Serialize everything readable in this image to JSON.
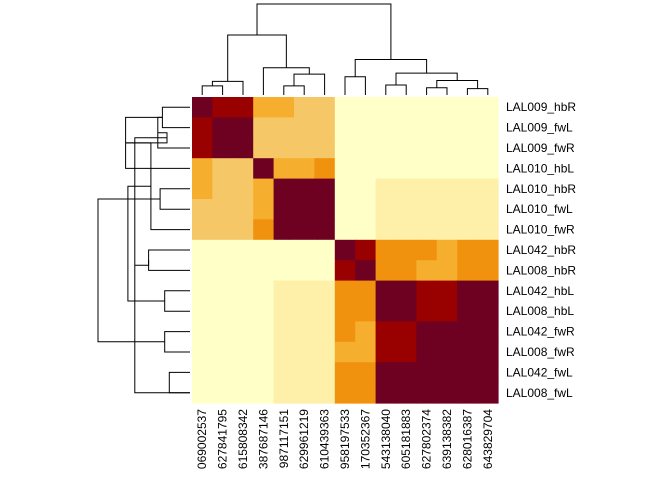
{
  "chart_data": {
    "type": "heatmap",
    "title": "",
    "xlabel": "",
    "ylabel": "",
    "rows": [
      "LAL009_hbR",
      "LAL009_fwL",
      "LAL009_fwR",
      "LAL010_hbL",
      "LAL010_hbR",
      "LAL010_fwL",
      "LAL010_fwR",
      "LAL042_hbR",
      "LAL008_hbR",
      "LAL042_hbL",
      "LAL008_hbL",
      "LAL042_fwR",
      "LAL008_fwR",
      "LAL042_fwL",
      "LAL008_fwL"
    ],
    "columns": [
      "069002537",
      "627841795",
      "615808342",
      "387687146",
      "987117151",
      "629961219",
      "610439363",
      "958197533",
      "170352367",
      "543138040",
      "605181883",
      "627802374",
      "639138382",
      "628016387",
      "643829704"
    ],
    "values": [
      [
        8,
        7,
        7,
        4,
        4,
        3,
        3,
        0,
        0,
        0,
        0,
        0,
        0,
        0,
        0
      ],
      [
        7,
        8,
        8,
        3,
        3,
        3,
        3,
        0,
        0,
        0,
        0,
        0,
        0,
        0,
        0
      ],
      [
        7,
        8,
        8,
        3,
        3,
        3,
        3,
        0,
        0,
        0,
        0,
        0,
        0,
        0,
        0
      ],
      [
        4,
        3,
        3,
        8,
        4,
        4,
        5,
        0,
        0,
        0,
        0,
        0,
        0,
        0,
        0
      ],
      [
        4,
        3,
        3,
        4,
        8,
        8,
        8,
        0,
        0,
        1,
        1,
        1,
        1,
        1,
        1
      ],
      [
        3,
        3,
        3,
        4,
        8,
        8,
        8,
        0,
        0,
        1,
        1,
        1,
        1,
        1,
        1
      ],
      [
        3,
        3,
        3,
        5,
        8,
        8,
        8,
        0,
        0,
        1,
        1,
        1,
        1,
        1,
        1
      ],
      [
        0,
        0,
        0,
        0,
        0,
        0,
        0,
        8,
        7,
        5,
        5,
        5,
        4,
        5,
        5
      ],
      [
        0,
        0,
        0,
        0,
        0,
        0,
        0,
        7,
        8,
        5,
        5,
        4,
        4,
        5,
        5
      ],
      [
        0,
        0,
        0,
        0,
        1,
        1,
        1,
        5,
        5,
        8,
        8,
        7,
        7,
        8,
        8
      ],
      [
        0,
        0,
        0,
        0,
        1,
        1,
        1,
        5,
        5,
        8,
        8,
        7,
        7,
        8,
        8
      ],
      [
        0,
        0,
        0,
        0,
        1,
        1,
        1,
        5,
        4,
        7,
        7,
        8,
        8,
        8,
        8
      ],
      [
        0,
        0,
        0,
        0,
        1,
        1,
        1,
        4,
        4,
        7,
        7,
        8,
        8,
        8,
        8
      ],
      [
        0,
        0,
        0,
        0,
        1,
        1,
        1,
        5,
        5,
        8,
        8,
        8,
        8,
        8,
        8
      ],
      [
        0,
        0,
        0,
        0,
        1,
        1,
        1,
        5,
        5,
        8,
        8,
        8,
        8,
        8,
        8
      ]
    ],
    "value_range": [
      0,
      8
    ],
    "colormap": [
      "#FFFFC8",
      "#FEF0A8",
      "#FEDC8A",
      "#F6C766",
      "#F5AE2E",
      "#F0920E",
      "#E86C0C",
      "#990000",
      "#6E0021"
    ],
    "row_dendrogram": [
      [
        0,
        1,
        1.2
      ],
      [
        15,
        2,
        1.4
      ],
      [
        15,
        3,
        2.8
      ],
      [
        17,
        16,
        1.0
      ],
      [
        4,
        5,
        1.3
      ],
      [
        17,
        6,
        1.7
      ],
      [
        14,
        18,
        2.4
      ],
      [
        7,
        8,
        1.8
      ],
      [
        9,
        10,
        1.1
      ],
      [
        11,
        12,
        1.1
      ],
      [
        13,
        14,
        0.9
      ],
      [
        21,
        22,
        1.8
      ],
      [
        23,
        20,
        2.7
      ],
      [
        19,
        24,
        4.0
      ]
    ],
    "col_dendrogram": [
      [
        0,
        1,
        1.0
      ],
      [
        15,
        2,
        1.5
      ],
      [
        4,
        5,
        1.0
      ],
      [
        17,
        6,
        2.3
      ],
      [
        3,
        18,
        3.0
      ],
      [
        16,
        19,
        6.6
      ],
      [
        7,
        8,
        2.0
      ],
      [
        9,
        10,
        1.1
      ],
      [
        11,
        12,
        0.8
      ],
      [
        13,
        14,
        0.7
      ],
      [
        23,
        24,
        1.6
      ],
      [
        22,
        25,
        2.4
      ],
      [
        21,
        26,
        3.9
      ],
      [
        20,
        27,
        10.0
      ]
    ]
  }
}
